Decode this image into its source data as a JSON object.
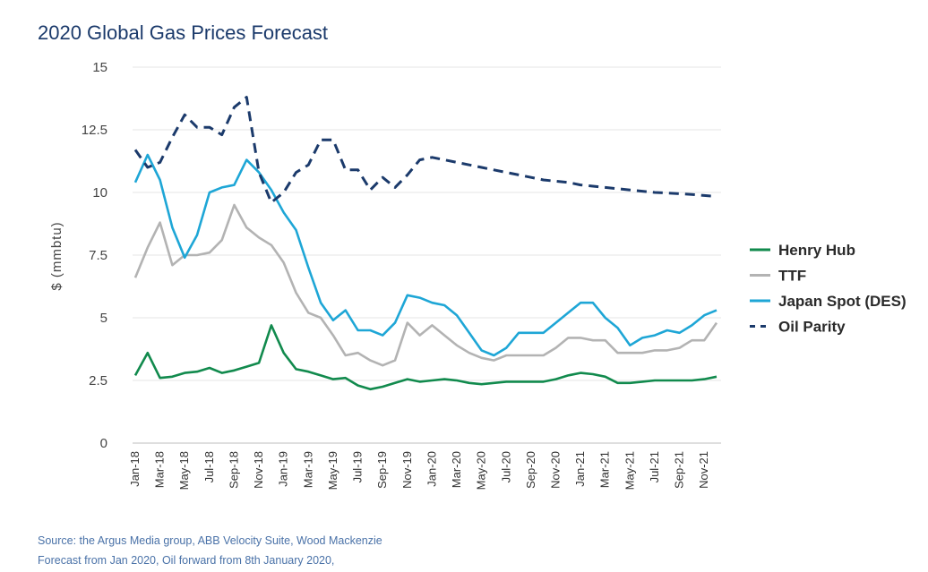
{
  "chart_data": {
    "type": "line",
    "title": "2020 Global Gas Prices Forecast",
    "ylabel": "$ (mmbtu)",
    "xlabel": "",
    "ylim": [
      0,
      15
    ],
    "yticks": [
      "0",
      "2.5",
      "5",
      "7.5",
      "10",
      "12.5",
      "15"
    ],
    "grid": true,
    "legend_position": "right",
    "x_tick_labels": [
      "Jan-18",
      "Mar-18",
      "May-18",
      "Jul-18",
      "Sep-18",
      "Nov-18",
      "Jan-19",
      "Mar-19",
      "May-19",
      "Jul-19",
      "Sep-19",
      "Nov-19",
      "Jan-20",
      "Mar-20",
      "May-20",
      "Jul-20",
      "Sep-20",
      "Nov-20",
      "Jan-21",
      "Mar-21",
      "May-21",
      "Jul-21",
      "Sep-21",
      "Nov-21"
    ],
    "months": [
      "2018-01",
      "2018-02",
      "2018-03",
      "2018-04",
      "2018-05",
      "2018-06",
      "2018-07",
      "2018-08",
      "2018-09",
      "2018-10",
      "2018-11",
      "2018-12",
      "2019-01",
      "2019-02",
      "2019-03",
      "2019-04",
      "2019-05",
      "2019-06",
      "2019-07",
      "2019-08",
      "2019-09",
      "2019-10",
      "2019-11",
      "2019-12",
      "2020-01",
      "2020-02",
      "2020-03",
      "2020-04",
      "2020-05",
      "2020-06",
      "2020-07",
      "2020-08",
      "2020-09",
      "2020-10",
      "2020-11",
      "2020-12",
      "2021-01",
      "2021-02",
      "2021-03",
      "2021-04",
      "2021-05",
      "2021-06",
      "2021-07",
      "2021-08",
      "2021-09",
      "2021-10",
      "2021-11",
      "2021-12"
    ],
    "series": [
      {
        "name": "Henry Hub",
        "color": "#118a4d",
        "dash": false,
        "values": [
          2.7,
          3.6,
          2.6,
          2.65,
          2.8,
          2.85,
          3.0,
          2.8,
          2.9,
          3.05,
          3.2,
          4.7,
          3.6,
          2.95,
          2.85,
          2.7,
          2.55,
          2.6,
          2.3,
          2.15,
          2.25,
          2.4,
          2.55,
          2.45,
          2.5,
          2.55,
          2.5,
          2.4,
          2.35,
          2.4,
          2.45,
          2.45,
          2.45,
          2.45,
          2.55,
          2.7,
          2.8,
          2.75,
          2.65,
          2.4,
          2.4,
          2.45,
          2.5,
          2.5,
          2.5,
          2.5,
          2.55,
          2.65
        ]
      },
      {
        "name": "TTF",
        "color": "#b3b3b3",
        "dash": false,
        "values": [
          6.6,
          7.8,
          8.8,
          7.1,
          7.5,
          7.5,
          7.6,
          8.1,
          9.5,
          8.6,
          8.2,
          7.9,
          7.2,
          6.0,
          5.2,
          5.0,
          4.3,
          3.5,
          3.6,
          3.3,
          3.1,
          3.3,
          4.8,
          4.3,
          4.7,
          4.3,
          3.9,
          3.6,
          3.4,
          3.3,
          3.5,
          3.5,
          3.5,
          3.5,
          3.8,
          4.2,
          4.2,
          4.1,
          4.1,
          3.6,
          3.6,
          3.6,
          3.7,
          3.7,
          3.8,
          4.1,
          4.1,
          4.8
        ]
      },
      {
        "name": "Japan Spot (DES)",
        "color": "#1ea6d6",
        "dash": false,
        "values": [
          10.4,
          11.5,
          10.5,
          8.6,
          7.4,
          8.3,
          10.0,
          10.2,
          10.3,
          11.3,
          10.8,
          10.1,
          9.2,
          8.5,
          7.0,
          5.6,
          4.9,
          5.3,
          4.5,
          4.5,
          4.3,
          4.8,
          5.9,
          5.8,
          5.6,
          5.5,
          5.1,
          4.4,
          3.7,
          3.5,
          3.8,
          4.4,
          4.4,
          4.4,
          4.8,
          5.2,
          5.6,
          5.6,
          5.0,
          4.6,
          3.9,
          4.2,
          4.3,
          4.5,
          4.4,
          4.7,
          5.1,
          5.3
        ]
      },
      {
        "name": "Oil Parity",
        "color": "#1b3a6b",
        "dash": true,
        "values": [
          11.7,
          11.0,
          11.2,
          12.2,
          13.1,
          12.6,
          12.6,
          12.3,
          13.4,
          13.8,
          10.8,
          9.6,
          10.0,
          10.8,
          11.1,
          12.1,
          12.1,
          10.9,
          10.9,
          10.1,
          10.6,
          10.2,
          10.7,
          11.3,
          11.4,
          11.3,
          11.2,
          11.1,
          11.0,
          10.9,
          10.8,
          10.7,
          10.6,
          10.5,
          10.45,
          10.4,
          10.3,
          10.25,
          10.2,
          10.15,
          10.1,
          10.05,
          10.0,
          9.98,
          9.95,
          9.92,
          9.88,
          9.84
        ]
      }
    ]
  },
  "source_note_1": "Source: the Argus Media group, ABB Velocity Suite, Wood Mackenzie",
  "source_note_2": "Forecast from Jan 2020, Oil forward from 8th January 2020,"
}
